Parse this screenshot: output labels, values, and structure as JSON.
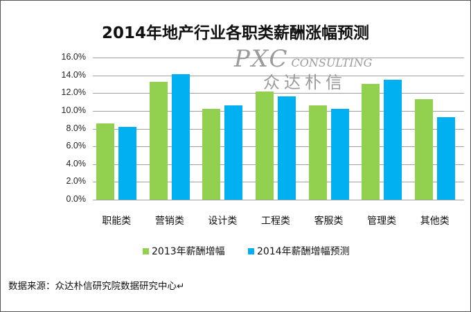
{
  "title": "2014年地产行业各职类薪酬涨幅预测",
  "watermark": {
    "logo": "PXC",
    "sub": "CONSULTING",
    "cn": "众达朴信"
  },
  "source": "数据来源：众达朴信研究院数据研究中心↵",
  "colors": {
    "series_2013": "#92d050",
    "series_2014": "#00b0f0",
    "grid": "#a0a0a0"
  },
  "legend": [
    {
      "label": "2013年薪酬增幅",
      "color": "#92d050"
    },
    {
      "label": "2014年薪酬增幅预测",
      "color": "#00b0f0"
    }
  ],
  "y_ticks": [
    "16.0%",
    "14.0%",
    "12.0%",
    "10.0%",
    "8.0%",
    "6.0%",
    "4.0%",
    "2.0%",
    "0.0%"
  ],
  "chart_data": {
    "type": "bar",
    "title": "2014年地产行业各职类薪酬涨幅预测",
    "xlabel": "",
    "ylabel": "",
    "categories": [
      "职能类",
      "营销类",
      "设计类",
      "工程类",
      "客服类",
      "管理类",
      "其他类"
    ],
    "series": [
      {
        "name": "2013年薪酬增幅",
        "values": [
          8.6,
          13.3,
          10.2,
          12.2,
          10.6,
          13.0,
          11.3
        ]
      },
      {
        "name": "2014年薪酬增幅预测",
        "values": [
          8.2,
          14.1,
          10.6,
          11.6,
          10.2,
          13.5,
          9.3
        ]
      }
    ],
    "ylim": [
      0,
      16
    ],
    "y_tick_format": "percent_1dp",
    "grid": true,
    "legend_position": "bottom"
  }
}
